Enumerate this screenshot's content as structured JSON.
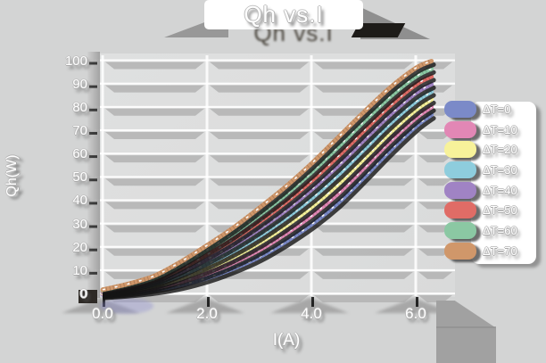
{
  "title": "Qh vs.I",
  "axes": {
    "x_label": "I(A)",
    "y_label": "Qh(W)",
    "x_ticks": [
      {
        "label": "0.0",
        "value": 0
      },
      {
        "label": "2.0",
        "value": 2
      },
      {
        "label": "4.0",
        "value": 4
      },
      {
        "label": "6.0",
        "value": 6
      }
    ],
    "y_ticks": [
      {
        "label": "0",
        "value": 0
      },
      {
        "label": "10",
        "value": 10
      },
      {
        "label": "20",
        "value": 20
      },
      {
        "label": "30",
        "value": 30
      },
      {
        "label": "40",
        "value": 40
      },
      {
        "label": "50",
        "value": 50
      },
      {
        "label": "60",
        "value": 60
      },
      {
        "label": "70",
        "value": 70
      },
      {
        "label": "80",
        "value": 80
      },
      {
        "label": "90",
        "value": 90
      },
      {
        "label": "100",
        "value": 100
      }
    ]
  },
  "chart_data": {
    "type": "line",
    "title": "Qh vs.I",
    "xlabel": "I(A)",
    "ylabel": "Qh(W)",
    "xlim": [
      0,
      6.75
    ],
    "ylim": [
      0,
      103
    ],
    "grid": true,
    "legend_position": "right",
    "x": [
      0,
      0.5,
      1,
      1.5,
      2,
      2.5,
      3,
      3.5,
      4,
      4.5,
      5,
      5.5,
      6,
      6.3
    ],
    "series": [
      {
        "name": "ΔT=0",
        "color": "#7b8ac8",
        "values": [
          0,
          0.8,
          2,
          4,
          7,
          11,
          16,
          22.5,
          30,
          39,
          50,
          61.5,
          72,
          77
        ]
      },
      {
        "name": "ΔT=10",
        "color": "#e287b5",
        "values": [
          0.3,
          1.3,
          2.9,
          5.4,
          9,
          13.5,
          19,
          25.9,
          33.7,
          43,
          54,
          65.4,
          75.6,
          80.3
        ]
      },
      {
        "name": "ΔT=20",
        "color": "#f7f29a",
        "values": [
          0.6,
          1.9,
          3.7,
          6.9,
          11,
          16,
          22,
          29.2,
          37.4,
          47,
          58,
          69.2,
          79.1,
          83.6
        ]
      },
      {
        "name": "ΔT=30",
        "color": "#8ecddd",
        "values": [
          0.9,
          2.4,
          4.6,
          8.3,
          13,
          18.5,
          25,
          32.6,
          41.1,
          51,
          62,
          73.1,
          82.7,
          86.9
        ]
      },
      {
        "name": "ΔT=40",
        "color": "#a083c4",
        "values": [
          1.1,
          2.9,
          5.4,
          9.7,
          15,
          21,
          28,
          35.9,
          44.9,
          55,
          66,
          76.9,
          86.3,
          90.1
        ]
      },
      {
        "name": "ΔT=50",
        "color": "#e06c66",
        "values": [
          1.4,
          3.4,
          6.3,
          11.1,
          17,
          23.5,
          31,
          39.3,
          48.6,
          59,
          70,
          80.8,
          89.9,
          93.4
        ]
      },
      {
        "name": "ΔT=60",
        "color": "#8bc8a3",
        "values": [
          1.7,
          4,
          7.1,
          12.6,
          19,
          26,
          34,
          42.6,
          52.3,
          63,
          74,
          84.6,
          93.4,
          96.7
        ]
      },
      {
        "name": "ΔT=70",
        "color": "#d0976a",
        "values": [
          2,
          4.5,
          8,
          14,
          21,
          28.5,
          37,
          46,
          56,
          67,
          78,
          88.5,
          97,
          100
        ]
      }
    ]
  }
}
